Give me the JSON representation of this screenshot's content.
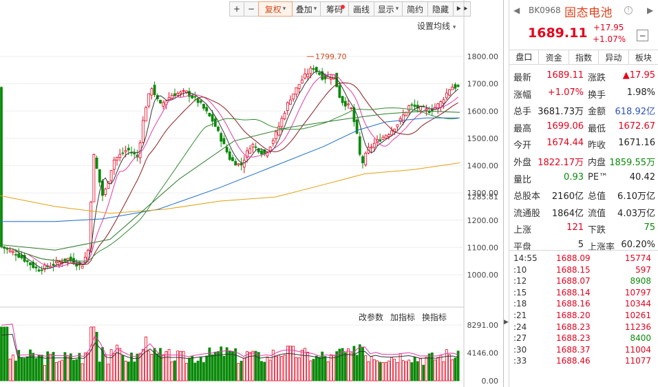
{
  "toolbar": {
    "buttons": [
      {
        "label": "+",
        "active": false,
        "dot": false,
        "caret": false
      },
      {
        "label": "−",
        "active": false,
        "dot": false,
        "caret": false
      },
      {
        "label": "复权",
        "active": true,
        "dot": false,
        "caret": true
      },
      {
        "label": "叠加",
        "active": false,
        "dot": false,
        "caret": true
      },
      {
        "label": "筹码",
        "active": false,
        "dot": true,
        "caret": false
      },
      {
        "label": "画线",
        "active": false,
        "dot": false,
        "caret": false
      },
      {
        "label": "显示",
        "active": false,
        "dot": false,
        "caret": true
      },
      {
        "label": "简约",
        "active": false,
        "dot": false,
        "caret": false
      },
      {
        "label": "隐藏",
        "active": false,
        "dot": false,
        "caret": false
      },
      {
        "label": "⯈⯈",
        "active": false,
        "dot": false,
        "caret": false
      }
    ]
  },
  "chart": {
    "ma_setting_label": "设置均线",
    "price_axis_ticks": [
      "1800.00",
      "1700.00",
      "1600.00",
      "1500.00",
      "1400.00",
      "1300.00",
      "1200.00",
      "1100.00",
      "1000.00"
    ],
    "current_price_label": "1285.81",
    "high_annotation": "1799.70",
    "volume_axis_ticks": [
      "8291.00",
      "4146.00",
      "0.00"
    ],
    "indicator_buttons": [
      "改参数",
      "加指标",
      "换指标"
    ],
    "colors": {
      "up": "#e5001c",
      "down": "#0a8a0a",
      "ma5": "#333333",
      "ma10": "#e13aa8",
      "ma20": "#8b1a1a",
      "ma30": "#2f8a2f",
      "ma60": "#1e6ec8",
      "ma120": "#e0a010"
    }
  },
  "panel": {
    "code": "BK0968",
    "name": "固态电池",
    "price": "1689.11",
    "change": "+17.95",
    "change_pct": "+1.07%",
    "tabs": [
      {
        "label": "盘口",
        "active": true
      },
      {
        "label": "资金",
        "active": false
      },
      {
        "label": "指数",
        "active": false
      },
      {
        "label": "异动",
        "active": false
      },
      {
        "label": "板块",
        "active": false
      }
    ],
    "stats": [
      {
        "l1": "最新",
        "v1": "1689.11",
        "c1": "red",
        "l2": "涨跌",
        "v2": "▲17.95",
        "c2": "red"
      },
      {
        "l1": "涨幅",
        "v1": "+1.07%",
        "c1": "red",
        "l2": "换手",
        "v2": "1.98%",
        "c2": "dark"
      },
      {
        "l1": "总手",
        "v1": "3681.73万",
        "c1": "dark",
        "l2": "金额",
        "v2": "618.92亿",
        "c2": "blue"
      },
      {
        "l1": "最高",
        "v1": "1699.06",
        "c1": "red",
        "l2": "最低",
        "v2": "1672.67",
        "c2": "red"
      },
      {
        "l1": "今开",
        "v1": "1674.44",
        "c1": "red",
        "l2": "昨收",
        "v2": "1671.16",
        "c2": "dark"
      },
      {
        "l1": "外盘",
        "v1": "1822.17万",
        "c1": "red",
        "l2": "内盘",
        "v2": "1859.55万",
        "c2": "green"
      },
      {
        "l1": "量比",
        "v1": "0.93",
        "c1": "green",
        "l2": "PE™",
        "v2": "40.42",
        "c2": "dark"
      },
      {
        "l1": "总股本",
        "v1": "2160亿",
        "c1": "dark",
        "l2": "总值",
        "v2": "6.10万亿",
        "c2": "dark"
      },
      {
        "l1": "流通股",
        "v1": "1864亿",
        "c1": "dark",
        "l2": "流值",
        "v2": "4.03万亿",
        "c2": "dark"
      },
      {
        "l1": "上涨",
        "v1": "121",
        "c1": "red",
        "l2": "下跌",
        "v2": "75",
        "c2": "green"
      },
      {
        "l1": "平盘",
        "v1": "5",
        "c1": "dark",
        "l2": "上涨率",
        "v2": "60.20%",
        "c2": "dark"
      }
    ],
    "ticks": [
      {
        "time": "14:55",
        "price": "1688.09",
        "vol": "15774",
        "vc": "red"
      },
      {
        "time": ":10",
        "price": "1688.15",
        "vol": "597",
        "vc": "red"
      },
      {
        "time": ":12",
        "price": "1688.07",
        "vol": "8908",
        "vc": "green"
      },
      {
        "time": ":15",
        "price": "1688.14",
        "vol": "10797",
        "vc": "red"
      },
      {
        "time": ":18",
        "price": "1688.16",
        "vol": "10344",
        "vc": "red"
      },
      {
        "time": ":21",
        "price": "1688.20",
        "vol": "10261",
        "vc": "red"
      },
      {
        "time": ":24",
        "price": "1688.23",
        "vol": "11236",
        "vc": "red"
      },
      {
        "time": ":27",
        "price": "1688.23",
        "vol": "8400",
        "vc": "green"
      },
      {
        "time": ":30",
        "price": "1688.37",
        "vol": "11004",
        "vc": "red"
      },
      {
        "time": ":33",
        "price": "1688.46",
        "vol": "11077",
        "vc": "red"
      }
    ]
  }
}
